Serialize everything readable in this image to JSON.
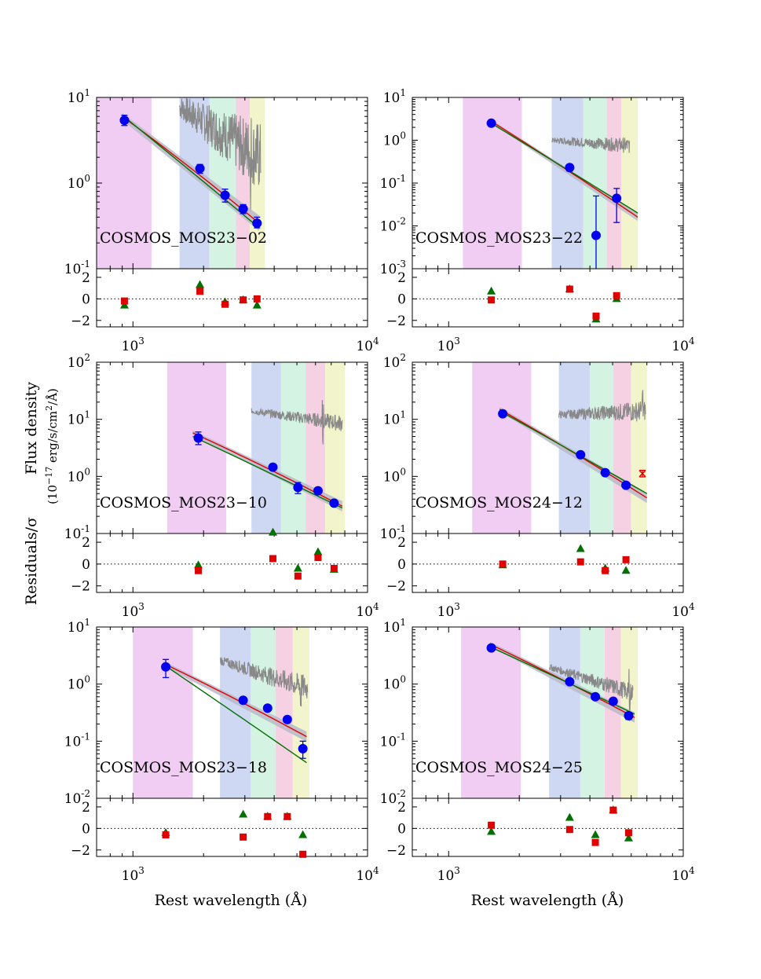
{
  "figure": {
    "ylabel_main": "Flux density",
    "ylabel_units": "(10",
    "ylabel_exp": "−17",
    "ylabel_units2": " erg/s/cm",
    "ylabel_sq": "2",
    "ylabel_units3": "/Å)",
    "resid_label": "Residuals/σ",
    "xlabel": "Rest wavelength (Å)",
    "colors": {
      "band_uv": "#f1cdf3",
      "band_blue": "#cfd8f3",
      "band_green": "#d4f3e3",
      "band_pink": "#f6d0e3",
      "band_yellow": "#f2f5cc",
      "spectrum": "#888888",
      "photometry": "#0000ee",
      "model_red": "#e00000",
      "model_green": "#007000",
      "confidence": "#b8b8c8"
    }
  },
  "chart_data": [
    {
      "type": "scatter",
      "title": "COSMOS_MOS23−02",
      "xscale": "log",
      "xlim": [
        700,
        10000
      ],
      "ylim_exp": [
        -1,
        1
      ],
      "ytick_exps": [
        -1,
        0,
        1
      ],
      "xtick_label": [
        "10",
        "3",
        "10",
        "4"
      ],
      "resid_ylim": [
        -2.6,
        2.8
      ],
      "resid_ticks": [
        -2,
        0,
        2
      ],
      "bands": [
        [
          700,
          1200
        ],
        [
          1580,
          2120
        ],
        [
          2120,
          2750
        ],
        [
          2750,
          3150
        ],
        [
          3150,
          3650
        ]
      ],
      "photometry": [
        {
          "x": 920,
          "y": 5.4,
          "lo": 4.7,
          "hi": 6.2
        },
        {
          "x": 1930,
          "y": 1.48,
          "lo": 1.3,
          "hi": 1.65
        },
        {
          "x": 2470,
          "y": 0.72,
          "lo": 0.6,
          "hi": 0.85
        },
        {
          "x": 2950,
          "y": 0.5,
          "lo": 0.44,
          "hi": 0.56
        },
        {
          "x": 3380,
          "y": 0.34,
          "lo": 0.3,
          "hi": 0.4
        }
      ],
      "model_red": {
        "x0": 900,
        "y0": 6.0,
        "x1": 3450,
        "y1": 0.34
      },
      "model_green": {
        "x0": 900,
        "y0": 6.2,
        "x1": 3450,
        "y1": 0.3
      },
      "spectrum": {
        "x0": 1580,
        "x1": 3500,
        "y0": 7.8,
        "y1": 2.0,
        "noise": 0.55,
        "spike_x": 3180
      },
      "resid_red": [
        [
          920,
          -0.2
        ],
        [
          1930,
          0.7
        ],
        [
          2470,
          -0.5
        ],
        [
          2950,
          -0.1
        ],
        [
          3380,
          0.0
        ]
      ],
      "resid_green": [
        [
          920,
          -0.6
        ],
        [
          1930,
          1.3
        ],
        [
          2470,
          -0.3
        ],
        [
          2950,
          -0.1
        ],
        [
          3380,
          -0.6
        ]
      ]
    },
    {
      "type": "scatter",
      "title": "COSMOS_MOS23−22",
      "xscale": "log",
      "xlim": [
        700,
        10000
      ],
      "ylim_exp": [
        -3,
        1
      ],
      "ytick_exps": [
        -3,
        -2,
        -1,
        0,
        1
      ],
      "xtick_label": [
        "10",
        "3",
        "10",
        "4"
      ],
      "resid_ylim": [
        -2.6,
        2.8
      ],
      "resid_ticks": [
        -2,
        0,
        2
      ],
      "bands": [
        [
          1150,
          2050
        ],
        [
          2750,
          3750
        ],
        [
          3750,
          4720
        ],
        [
          4720,
          5450
        ],
        [
          5450,
          6400
        ]
      ],
      "photometry": [
        {
          "x": 1520,
          "y": 2.5,
          "lo": 2.1,
          "hi": 2.9
        },
        {
          "x": 3280,
          "y": 0.23,
          "lo": 0.19,
          "hi": 0.27
        },
        {
          "x": 4250,
          "y": 0.006,
          "lo": 0.0005,
          "hi": 0.05
        },
        {
          "x": 5200,
          "y": 0.044,
          "lo": 0.012,
          "hi": 0.075
        }
      ],
      "model_red": {
        "x0": 1500,
        "y0": 2.9,
        "x1": 6400,
        "y1": 0.016
      },
      "model_green": {
        "x0": 1500,
        "y0": 2.6,
        "x1": 6400,
        "y1": 0.02
      },
      "spectrum": {
        "x0": 2750,
        "x1": 5900,
        "y0": 1.0,
        "y1": 0.75,
        "noise": 0.25,
        "spike_x": 0
      },
      "resid_red": [
        [
          1520,
          -0.1
        ],
        [
          3280,
          0.9
        ],
        [
          4250,
          -1.6
        ],
        [
          5200,
          0.3
        ]
      ],
      "resid_green": [
        [
          1520,
          0.7
        ],
        [
          3280,
          0.9
        ],
        [
          4250,
          -1.9
        ],
        [
          5200,
          0.0
        ]
      ]
    },
    {
      "type": "scatter",
      "title": "COSMOS_MOS23−10",
      "xscale": "log",
      "xlim": [
        700,
        10000
      ],
      "ylim_exp": [
        -1,
        2
      ],
      "ytick_exps": [
        -1,
        0,
        1,
        2
      ],
      "xtick_label": [
        "10",
        "3",
        "10",
        "4"
      ],
      "resid_ylim": [
        -2.6,
        2.8
      ],
      "resid_ticks": [
        -2,
        0,
        2
      ],
      "bands": [
        [
          1400,
          2500
        ],
        [
          3200,
          4280
        ],
        [
          4280,
          5450
        ],
        [
          5450,
          6600
        ],
        [
          6600,
          8000
        ]
      ],
      "photometry": [
        {
          "x": 1900,
          "y": 4.7,
          "lo": 3.6,
          "hi": 6.0
        },
        {
          "x": 3950,
          "y": 1.45,
          "lo": 1.35,
          "hi": 1.55
        },
        {
          "x": 5050,
          "y": 0.64,
          "lo": 0.5,
          "hi": 0.78
        },
        {
          "x": 6150,
          "y": 0.56,
          "lo": 0.52,
          "hi": 0.6
        },
        {
          "x": 7200,
          "y": 0.34,
          "lo": 0.3,
          "hi": 0.38
        }
      ],
      "model_red": {
        "x0": 1800,
        "y0": 5.8,
        "x1": 7800,
        "y1": 0.3
      },
      "model_green": {
        "x0": 1800,
        "y0": 5.0,
        "x1": 7800,
        "y1": 0.28
      },
      "spectrum": {
        "x0": 3200,
        "x1": 7800,
        "y0": 14.0,
        "y1": 8.5,
        "noise": 0.2,
        "spike_x": 6450
      },
      "resid_red": [
        [
          1900,
          -0.6
        ],
        [
          3950,
          0.5
        ],
        [
          5050,
          -1.1
        ],
        [
          6150,
          0.6
        ],
        [
          7200,
          -0.4
        ]
      ],
      "resid_green": [
        [
          1900,
          -0.1
        ],
        [
          3950,
          2.9
        ],
        [
          5050,
          -0.4
        ],
        [
          6150,
          1.1
        ],
        [
          7200,
          -0.5
        ]
      ]
    },
    {
      "type": "scatter",
      "title": "COSMOS_MOS24−12",
      "xscale": "log",
      "xlim": [
        700,
        10000
      ],
      "ylim_exp": [
        -1,
        2
      ],
      "ytick_exps": [
        -1,
        0,
        1,
        2
      ],
      "xtick_label": [
        "10",
        "3",
        "10",
        "4"
      ],
      "resid_ylim": [
        -2.6,
        2.8
      ],
      "resid_ticks": [
        -2,
        0,
        2
      ],
      "bands": [
        [
          1260,
          2250
        ],
        [
          2950,
          4000
        ],
        [
          4000,
          5030
        ],
        [
          5030,
          6000
        ],
        [
          6000,
          7000
        ]
      ],
      "photometry": [
        {
          "x": 1700,
          "y": 12.5,
          "lo": 11.5,
          "hi": 13.5
        },
        {
          "x": 3650,
          "y": 2.4,
          "lo": 2.2,
          "hi": 2.6
        },
        {
          "x": 4650,
          "y": 1.16,
          "lo": 1.06,
          "hi": 1.26
        },
        {
          "x": 5700,
          "y": 0.7,
          "lo": 0.64,
          "hi": 0.76
        }
      ],
      "outlier": {
        "x": 6700,
        "y": 1.12,
        "lo": 0.98,
        "hi": 1.28
      },
      "model_red": {
        "x0": 1650,
        "y0": 15.0,
        "x1": 7000,
        "y1": 0.42
      },
      "model_green": {
        "x0": 1650,
        "y0": 14.0,
        "x1": 7000,
        "y1": 0.5
      },
      "spectrum": {
        "x0": 2950,
        "x1": 6900,
        "y0": 12.0,
        "y1": 14.0,
        "noise": 0.25,
        "spike_x": 6700
      },
      "resid_red": [
        [
          1700,
          0.0
        ],
        [
          3650,
          0.2
        ],
        [
          4650,
          -0.6
        ],
        [
          5700,
          0.4
        ]
      ],
      "resid_green": [
        [
          1700,
          -0.1
        ],
        [
          3650,
          1.4
        ],
        [
          4650,
          -0.4
        ],
        [
          5700,
          -0.6
        ]
      ]
    },
    {
      "type": "scatter",
      "title": "COSMOS_MOS23−18",
      "xscale": "log",
      "xlim": [
        700,
        10000
      ],
      "ylim_exp": [
        -2,
        1
      ],
      "ytick_exps": [
        -2,
        -1,
        0,
        1
      ],
      "xtick_label": [
        "10",
        "3",
        "10",
        "4"
      ],
      "resid_ylim": [
        -2.6,
        2.8
      ],
      "resid_ticks": [
        -2,
        0,
        2
      ],
      "bands": [
        [
          1000,
          1800
        ],
        [
          2350,
          3180
        ],
        [
          3180,
          4050
        ],
        [
          4050,
          4800
        ],
        [
          4800,
          5650
        ]
      ],
      "photometry": [
        {
          "x": 1380,
          "y": 2.0,
          "lo": 1.3,
          "hi": 2.7
        },
        {
          "x": 2950,
          "y": 0.52,
          "lo": 0.46,
          "hi": 0.58
        },
        {
          "x": 3750,
          "y": 0.38,
          "lo": 0.35,
          "hi": 0.41
        },
        {
          "x": 4550,
          "y": 0.24,
          "lo": 0.22,
          "hi": 0.26
        },
        {
          "x": 5300,
          "y": 0.074,
          "lo": 0.05,
          "hi": 0.1
        }
      ],
      "model_red": {
        "x0": 1350,
        "y0": 2.3,
        "x1": 5500,
        "y1": 0.12
      },
      "model_green": {
        "x0": 1350,
        "y0": 2.2,
        "x1": 5500,
        "y1": 0.042
      },
      "spectrum": {
        "x0": 2350,
        "x1": 5550,
        "y0": 2.6,
        "y1": 0.85,
        "noise": 0.3,
        "spike_x": 5200
      },
      "resid_red": [
        [
          1380,
          -0.6
        ],
        [
          2950,
          -0.8
        ],
        [
          3750,
          1.1
        ],
        [
          4550,
          1.1
        ],
        [
          5300,
          -2.4
        ]
      ],
      "resid_green": [
        [
          1380,
          -0.4
        ],
        [
          2950,
          1.3
        ],
        [
          3750,
          1.1
        ],
        [
          4550,
          1.1
        ],
        [
          5300,
          -0.6
        ]
      ]
    },
    {
      "type": "scatter",
      "title": "COSMOS_MOS24−25",
      "xscale": "log",
      "xlim": [
        700,
        10000
      ],
      "ylim_exp": [
        -2,
        1
      ],
      "ytick_exps": [
        -2,
        -1,
        0,
        1
      ],
      "xtick_label": [
        "10",
        "3",
        "10",
        "4"
      ],
      "resid_ylim": [
        -2.6,
        2.8
      ],
      "resid_ticks": [
        -2,
        0,
        2
      ],
      "bands": [
        [
          1130,
          2030
        ],
        [
          2680,
          3640
        ],
        [
          3640,
          4620
        ],
        [
          4620,
          5420
        ],
        [
          5420,
          6400
        ]
      ],
      "photometry": [
        {
          "x": 1520,
          "y": 4.3,
          "lo": 4.0,
          "hi": 4.6
        },
        {
          "x": 3280,
          "y": 1.1,
          "lo": 1.0,
          "hi": 1.2
        },
        {
          "x": 4220,
          "y": 0.6,
          "lo": 0.55,
          "hi": 0.65
        },
        {
          "x": 5030,
          "y": 0.5,
          "lo": 0.46,
          "hi": 0.54
        },
        {
          "x": 5850,
          "y": 0.28,
          "lo": 0.24,
          "hi": 0.32
        }
      ],
      "model_red": {
        "x0": 1500,
        "y0": 5.0,
        "x1": 6200,
        "y1": 0.26
      },
      "model_green": {
        "x0": 1500,
        "y0": 4.5,
        "x1": 6200,
        "y1": 0.3
      },
      "spectrum": {
        "x0": 2680,
        "x1": 6100,
        "y0": 2.0,
        "y1": 0.7,
        "noise": 0.22,
        "spike_x": 5900
      },
      "resid_red": [
        [
          1520,
          0.3
        ],
        [
          3280,
          -0.1
        ],
        [
          4220,
          -1.3
        ],
        [
          5030,
          1.7
        ],
        [
          5850,
          -0.4
        ]
      ],
      "resid_green": [
        [
          1520,
          -0.3
        ],
        [
          3280,
          1.0
        ],
        [
          4220,
          -0.6
        ],
        [
          5030,
          1.7
        ],
        [
          5850,
          -0.9
        ]
      ]
    }
  ]
}
